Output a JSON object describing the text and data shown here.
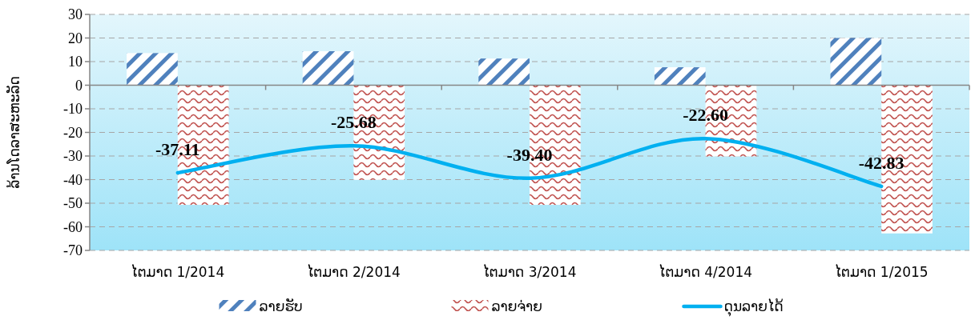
{
  "chart_data": {
    "type": "bar",
    "ylabel": "ລ້ານໂດລາສະຫະລັດ",
    "categories": [
      "ໄຕມາດ 1/2014",
      "ໄຕມາດ 2/2014",
      "ໄຕມາດ 3/2014",
      "ໄຕມາດ 4/2014",
      "ໄຕມາດ 1/2015"
    ],
    "series": [
      {
        "name": "ລາຍຮັບ",
        "color": "#4f81bd",
        "values": [
          13.6,
          14.4,
          11.3,
          7.6,
          20.0
        ]
      },
      {
        "name": "ລາຍຈ່າຍ",
        "color": "#c0504d",
        "values": [
          -50.7,
          -40.1,
          -50.7,
          -30.2,
          -62.8
        ]
      },
      {
        "name": "ດຸນລາຍໄດ້",
        "type": "line",
        "color": "#00b0f0",
        "values": [
          -37.11,
          -25.68,
          -39.4,
          -22.6,
          -42.83
        ],
        "value_labels": [
          "-37.11",
          "-25.68",
          "-39.40",
          "-22.60",
          "-42.83"
        ]
      }
    ],
    "ylim": [
      -70,
      30
    ],
    "yticks": [
      -70,
      -60,
      -50,
      -40,
      -30,
      -20,
      -10,
      0,
      10,
      20,
      30
    ],
    "grid": "y",
    "legend": "bottom"
  }
}
